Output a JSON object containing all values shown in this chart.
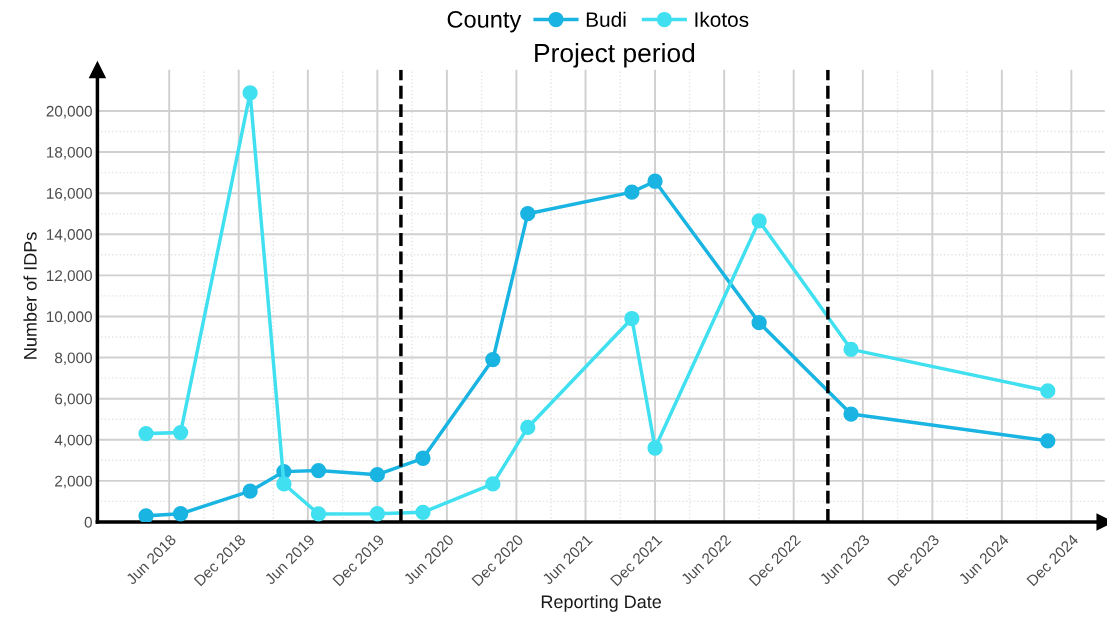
{
  "chart_data": {
    "type": "line",
    "xlabel": "Reporting Date",
    "ylabel": "Number of IDPs",
    "legend_title": "County",
    "legend": "top",
    "marker": "circle",
    "line_style": "solid",
    "grid": true,
    "series": [
      {
        "name": "Budi",
        "color": "#1ab4e2",
        "x": [
          "2018-04-01",
          "2018-07-01",
          "2018-12-31",
          "2019-03-30",
          "2019-06-29",
          "2019-12-01",
          "2020-03-30",
          "2020-09-30",
          "2020-12-31",
          "2021-10-01",
          "2021-12-01",
          "2022-09-01",
          "2023-05-01",
          "2024-09-30"
        ],
        "values": [
          300,
          400,
          1500,
          2450,
          2500,
          2300,
          3100,
          7900,
          15000,
          16050,
          16580,
          9700,
          5250,
          3950
        ]
      },
      {
        "name": "Ikotos",
        "color": "#40e0f0",
        "x": [
          "2018-04-01",
          "2018-07-01",
          "2018-12-31",
          "2019-03-30",
          "2019-06-29",
          "2019-12-01",
          "2020-03-30",
          "2020-09-30",
          "2020-12-31",
          "2021-10-01",
          "2021-12-01",
          "2022-09-01",
          "2023-05-01",
          "2024-09-30"
        ],
        "values": [
          4300,
          4350,
          20880,
          1850,
          390,
          400,
          470,
          1850,
          4600,
          9900,
          3600,
          14650,
          8400,
          6380
        ]
      }
    ],
    "xlim": [
      "2017-11-24",
      "2025-02-27"
    ],
    "xticks": [
      {
        "value": "2018-06-01",
        "label": "Jun 2018"
      },
      {
        "value": "2018-12-01",
        "label": "Dec 2018"
      },
      {
        "value": "2019-06-01",
        "label": "Jun 2019"
      },
      {
        "value": "2019-12-01",
        "label": "Dec 2019"
      },
      {
        "value": "2020-06-01",
        "label": "Jun 2020"
      },
      {
        "value": "2020-12-01",
        "label": "Dec 2020"
      },
      {
        "value": "2021-06-01",
        "label": "Jun 2021"
      },
      {
        "value": "2021-12-01",
        "label": "Dec 2021"
      },
      {
        "value": "2022-06-01",
        "label": "Jun 2022"
      },
      {
        "value": "2022-12-01",
        "label": "Dec 2022"
      },
      {
        "value": "2023-06-01",
        "label": "Jun 2023"
      },
      {
        "value": "2023-12-01",
        "label": "Dec 2023"
      },
      {
        "value": "2024-06-01",
        "label": "Jun 2024"
      },
      {
        "value": "2024-12-01",
        "label": "Dec 2024"
      }
    ],
    "ylim": [
      0,
      22000
    ],
    "yticks": [
      0,
      {
        "value": 2000,
        "label": "2,000"
      },
      {
        "value": 4000,
        "label": "4,000"
      },
      {
        "value": 6000,
        "label": "6,000"
      },
      {
        "value": 8000,
        "label": "8,000"
      },
      {
        "value": 10000,
        "label": "10,000"
      },
      {
        "value": 12000,
        "label": "12,000"
      },
      {
        "value": 14000,
        "label": "14,000"
      },
      {
        "value": 16000,
        "label": "16,000"
      },
      {
        "value": 18000,
        "label": "18,000"
      },
      {
        "value": 20000,
        "label": "20,000"
      }
    ],
    "ref_lines": [
      {
        "axis": "x",
        "value": "2020-02-01",
        "color": "#000000",
        "line_style": "dashed"
      },
      {
        "axis": "x",
        "value": "2023-03-01",
        "color": "#000000",
        "line_style": "dashed"
      }
    ],
    "annotations": [
      "Project period"
    ]
  }
}
